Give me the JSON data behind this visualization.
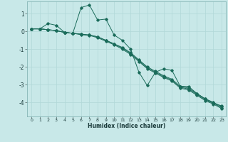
{
  "title": "",
  "xlabel": "Humidex (Indice chaleur)",
  "bg_color": "#c8e8e8",
  "grid_color": "#b0d8d8",
  "line_color": "#1a6b5a",
  "xlim": [
    -0.5,
    23.5
  ],
  "ylim": [
    -4.8,
    1.7
  ],
  "xticks": [
    0,
    1,
    2,
    3,
    4,
    5,
    6,
    7,
    8,
    9,
    10,
    11,
    12,
    13,
    14,
    15,
    16,
    17,
    18,
    19,
    20,
    21,
    22,
    23
  ],
  "yticks": [
    -4,
    -3,
    -2,
    -1,
    0,
    1
  ],
  "line1_x": [
    0,
    1,
    2,
    3,
    4,
    5,
    6,
    7,
    8,
    9,
    10,
    11,
    12,
    13,
    14,
    15,
    16,
    17,
    18,
    19,
    20,
    21,
    22,
    23
  ],
  "line1_y": [
    0.15,
    0.15,
    0.45,
    0.35,
    -0.05,
    -0.1,
    1.35,
    1.5,
    0.65,
    0.7,
    -0.2,
    -0.5,
    -1.0,
    -2.3,
    -3.05,
    -2.3,
    -2.1,
    -2.2,
    -3.1,
    -3.1,
    -3.5,
    -3.8,
    -4.05,
    -4.2
  ],
  "line2_x": [
    0,
    1,
    2,
    3,
    4,
    5,
    6,
    7,
    8,
    9,
    10,
    11,
    12,
    13,
    14,
    15,
    16,
    17,
    18,
    19,
    20,
    21,
    22,
    23
  ],
  "line2_y": [
    0.15,
    0.15,
    0.1,
    0.05,
    -0.05,
    -0.1,
    -0.15,
    -0.2,
    -0.3,
    -0.5,
    -0.7,
    -0.9,
    -1.2,
    -1.6,
    -2.0,
    -2.25,
    -2.5,
    -2.7,
    -3.1,
    -3.2,
    -3.5,
    -3.8,
    -4.0,
    -4.25
  ],
  "line3_x": [
    0,
    1,
    2,
    3,
    4,
    5,
    6,
    7,
    8,
    9,
    10,
    11,
    12,
    13,
    14,
    15,
    16,
    17,
    18,
    19,
    20,
    21,
    22,
    23
  ],
  "line3_y": [
    0.15,
    0.15,
    0.1,
    0.05,
    -0.05,
    -0.1,
    -0.15,
    -0.2,
    -0.3,
    -0.5,
    -0.7,
    -0.95,
    -1.25,
    -1.65,
    -2.05,
    -2.3,
    -2.55,
    -2.75,
    -3.15,
    -3.25,
    -3.55,
    -3.85,
    -4.05,
    -4.3
  ],
  "line4_x": [
    0,
    1,
    2,
    3,
    4,
    5,
    6,
    7,
    8,
    9,
    10,
    11,
    12,
    13,
    14,
    15,
    16,
    17,
    18,
    19,
    20,
    21,
    22,
    23
  ],
  "line4_y": [
    0.15,
    0.15,
    0.1,
    0.05,
    -0.05,
    -0.1,
    -0.18,
    -0.22,
    -0.35,
    -0.55,
    -0.75,
    -1.0,
    -1.3,
    -1.7,
    -2.1,
    -2.35,
    -2.6,
    -2.8,
    -3.2,
    -3.3,
    -3.6,
    -3.9,
    -4.1,
    -4.35
  ]
}
